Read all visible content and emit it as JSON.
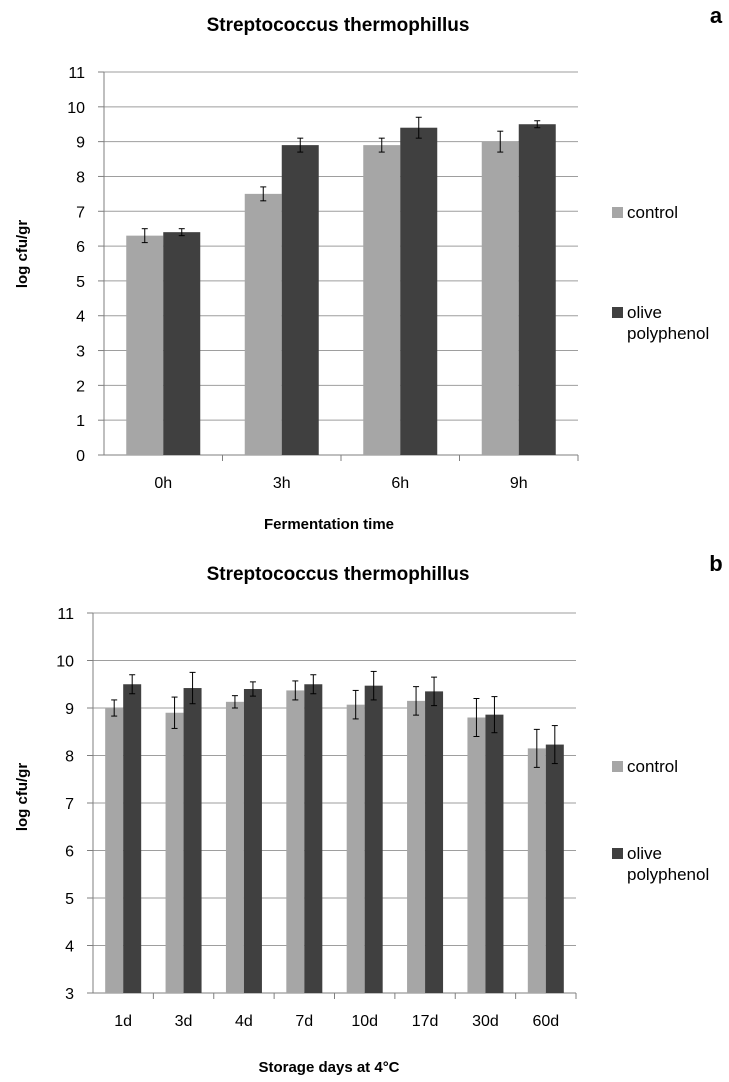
{
  "colors": {
    "control": "#a6a6a6",
    "olive": "#404040",
    "grid": "#9e9e9e",
    "axis": "#7f7f7f"
  },
  "chart_data": [
    {
      "type": "bar",
      "panel_label": "a",
      "title": "Streptococcus thermophillus",
      "xlabel": "Fermentation time",
      "ylabel": "log cfu/gr",
      "ylim": [
        0,
        11
      ],
      "yticks": [
        0,
        1,
        2,
        3,
        4,
        5,
        6,
        7,
        8,
        9,
        10,
        11
      ],
      "grid": true,
      "legend_position": "right",
      "categories": [
        "0h",
        "3h",
        "6h",
        "9h"
      ],
      "series": [
        {
          "name": "control",
          "values": [
            6.3,
            7.5,
            8.9,
            9.0
          ],
          "errors": [
            0.2,
            0.2,
            0.2,
            0.3
          ]
        },
        {
          "name": "olive polyphenol",
          "values": [
            6.4,
            8.9,
            9.4,
            9.5
          ],
          "errors": [
            0.1,
            0.2,
            0.3,
            0.1
          ]
        }
      ]
    },
    {
      "type": "bar",
      "panel_label": "b",
      "title": "Streptococcus thermophillus",
      "xlabel": "Storage days at 4°C",
      "ylabel": "log cfu/gr",
      "ylim": [
        3,
        11
      ],
      "yticks": [
        3,
        4,
        5,
        6,
        7,
        8,
        9,
        10,
        11
      ],
      "grid": true,
      "legend_position": "right",
      "categories": [
        "1d",
        "3d",
        "4d",
        "7d",
        "10d",
        "17d",
        "30d",
        "60d"
      ],
      "series": [
        {
          "name": "control",
          "values": [
            9.0,
            8.9,
            9.13,
            9.37,
            9.07,
            9.15,
            8.8,
            8.15
          ],
          "errors": [
            0.17,
            0.33,
            0.13,
            0.2,
            0.3,
            0.3,
            0.4,
            0.4
          ]
        },
        {
          "name": "olive polyphenol",
          "values": [
            9.5,
            9.42,
            9.4,
            9.5,
            9.47,
            9.35,
            8.86,
            8.23
          ],
          "errors": [
            0.2,
            0.33,
            0.15,
            0.2,
            0.3,
            0.3,
            0.38,
            0.4
          ]
        }
      ]
    }
  ]
}
